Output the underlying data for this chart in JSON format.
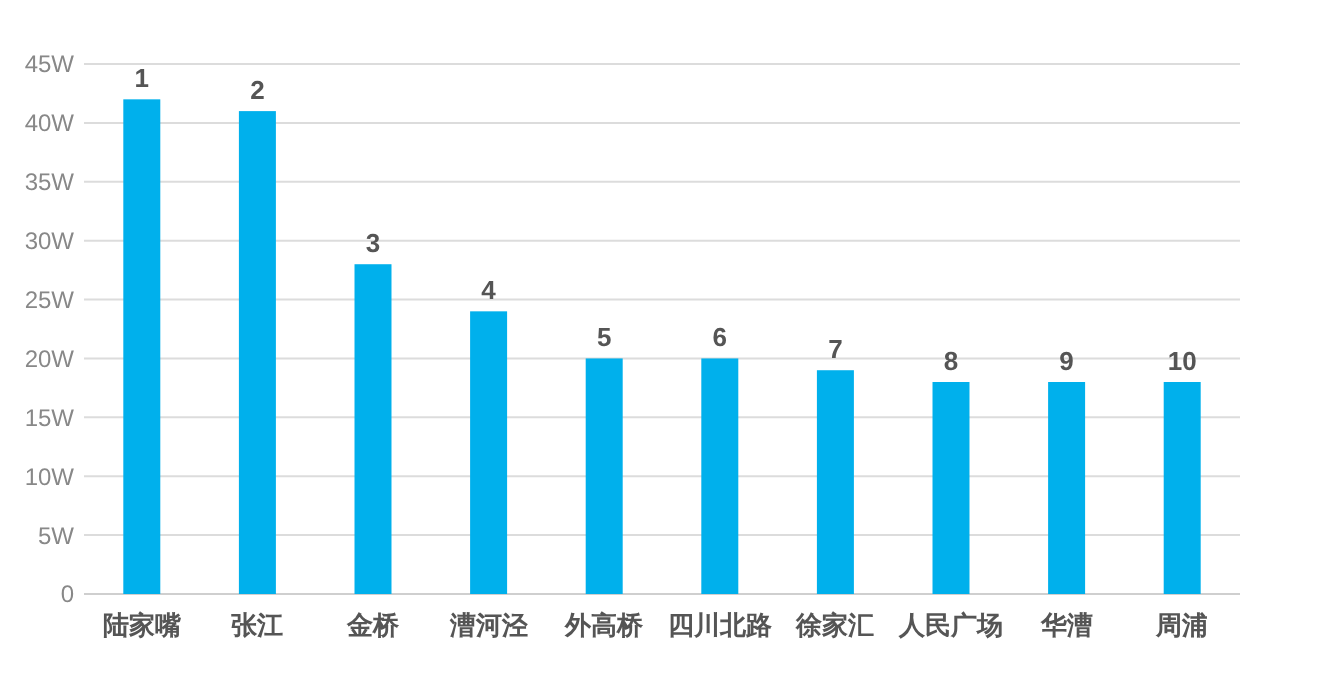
{
  "chart_data": {
    "type": "bar",
    "categories": [
      "陆家嘴",
      "张江",
      "金桥",
      "漕河泾",
      "外高桥",
      "四川北路",
      "徐家汇",
      "人民广场",
      "华漕",
      "周浦"
    ],
    "values": [
      42,
      41,
      28,
      24,
      20,
      20,
      19,
      18,
      18,
      18
    ],
    "annotations": [
      {
        "text": "1",
        "x": "陆家嘴",
        "y": 42
      },
      {
        "text": "2",
        "x": "张江",
        "y": 41
      },
      {
        "text": "3",
        "x": "金桥",
        "y": 28
      },
      {
        "text": "4",
        "x": "漕河泾",
        "y": 24
      },
      {
        "text": "5",
        "x": "外高桥",
        "y": 20
      },
      {
        "text": "6",
        "x": "四川北路",
        "y": 20
      },
      {
        "text": "7",
        "x": "徐家汇",
        "y": 19
      },
      {
        "text": "8",
        "x": "人民广场",
        "y": 18
      },
      {
        "text": "9",
        "x": "华漕",
        "y": 18
      },
      {
        "text": "10",
        "x": "周浦",
        "y": 18
      }
    ],
    "color": "#00b0ec",
    "ylim": [
      0,
      45
    ],
    "yticks": [
      {
        "value": 0,
        "label": "0"
      },
      {
        "value": 5,
        "label": "5W"
      },
      {
        "value": 10,
        "label": "10W"
      },
      {
        "value": 15,
        "label": "15W"
      },
      {
        "value": 20,
        "label": "20W"
      },
      {
        "value": 25,
        "label": "25W"
      },
      {
        "value": 30,
        "label": "30W"
      },
      {
        "value": 35,
        "label": "35W"
      },
      {
        "value": 40,
        "label": "40W"
      },
      {
        "value": 45,
        "label": "45W"
      }
    ],
    "grid": "y"
  }
}
